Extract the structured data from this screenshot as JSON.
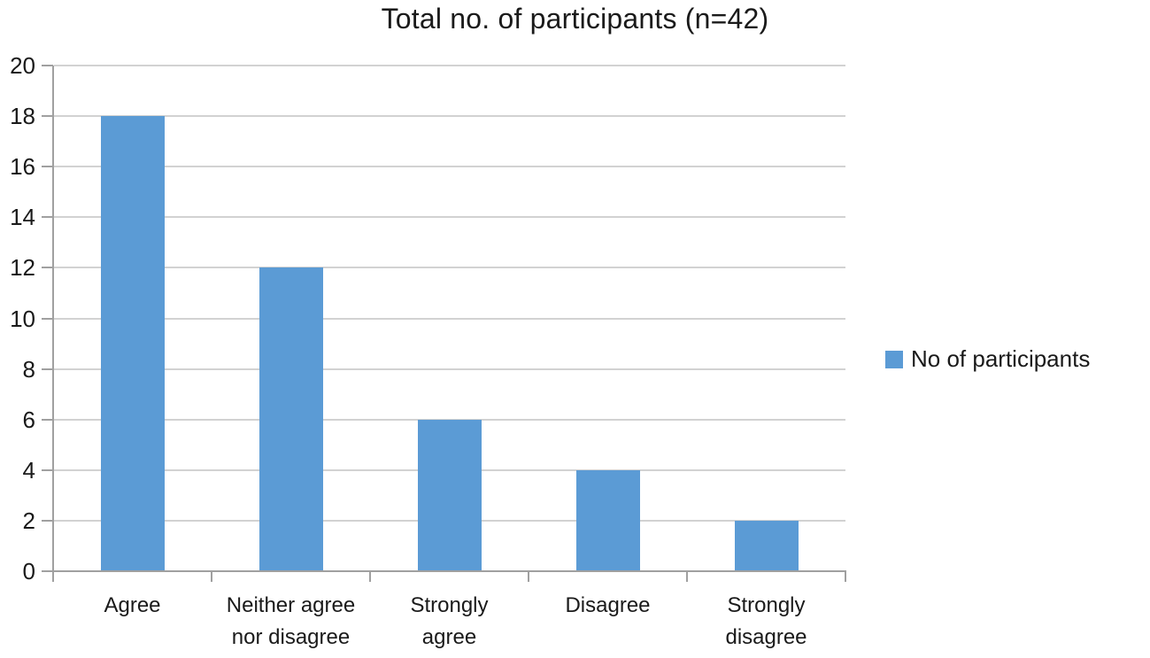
{
  "chart_data": {
    "type": "bar",
    "title": "Total no. of participants (n=42)",
    "categories": [
      "Agree",
      "Neither agree\nnor disagree",
      "Strongly\nagree",
      "Disagree",
      "Strongly\ndisagree"
    ],
    "series": [
      {
        "name": "No of participants",
        "values": [
          18,
          12,
          6,
          4,
          2
        ]
      }
    ],
    "xlabel": "",
    "ylabel": "",
    "ylim": [
      0,
      20
    ],
    "ytick_step": 2,
    "grid": true,
    "legend_position": "right",
    "colors": {
      "bar": "#5B9BD5",
      "gridline": "#D2D2D2",
      "axis": "#A0A0A0",
      "text": "#1a1a1a"
    }
  }
}
